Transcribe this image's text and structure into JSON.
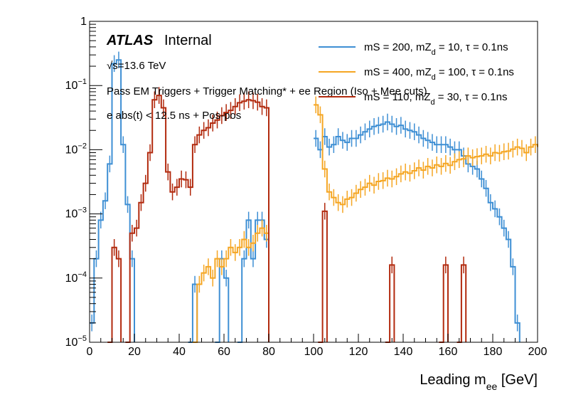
{
  "chart_data": {
    "type": "histogram",
    "xlabel": "Leading m",
    "xlabel_sub": "ee",
    "xlabel_unit": " [GeV]",
    "xlim": [
      0,
      200
    ],
    "ylim": [
      1e-05,
      1
    ],
    "yscale": "log",
    "grid": false,
    "legend_position": "top-right",
    "x_ticks": [
      0,
      20,
      40,
      60,
      80,
      100,
      120,
      140,
      160,
      180,
      200
    ],
    "y_ticks": [
      {
        "value": 1,
        "base": "1",
        "exp": ""
      },
      {
        "value": 0.1,
        "base": "10",
        "exp": "−1"
      },
      {
        "value": 0.01,
        "base": "10",
        "exp": "−2"
      },
      {
        "value": 0.001,
        "base": "10",
        "exp": "−3"
      },
      {
        "value": 0.0001,
        "base": "10",
        "exp": "−4"
      },
      {
        "value": 1e-05,
        "base": "10",
        "exp": "−5"
      }
    ],
    "annotations": {
      "atlas": "ATLAS",
      "internal": "Internal",
      "energy": "√s=13.6 TeV",
      "selection": "Pass EM Triggers + Trigger Matching* + ee Region (Iso + Mee cuts)",
      "timing": "e abs(t) < 12.5 ns + Pos-pos"
    },
    "series": [
      {
        "name_parts": [
          "mS = 200, mZ",
          "d",
          " = 10, τ = 0.1ns"
        ],
        "color": "#3e8fd4",
        "segments": [
          [
            [
              0,
              2e-05
            ],
            [
              2,
              0.0002
            ],
            [
              4,
              0.0008
            ],
            [
              6,
              0.0016
            ],
            [
              8,
              0.006
            ],
            [
              10,
              0.22
            ],
            [
              12,
              0.25
            ],
            [
              14,
              0.012
            ],
            [
              16,
              0.0014
            ],
            [
              18,
              0.0002
            ],
            [
              20,
              1e-05
            ]
          ],
          [
            [
              44,
              1e-05
            ],
            [
              46,
              8e-05
            ],
            [
              48,
              1e-05
            ]
          ],
          [
            [
              56,
              1e-05
            ],
            [
              58,
              0.0002
            ],
            [
              60,
              0.0001
            ],
            [
              62,
              1e-05
            ]
          ],
          [
            [
              66,
              1e-05
            ],
            [
              68,
              0.0002
            ],
            [
              70,
              0.0008
            ],
            [
              72,
              0.0002
            ],
            [
              74,
              0.0008
            ],
            [
              76,
              0.0008
            ],
            [
              78,
              0.0004
            ],
            [
              80,
              1e-05
            ]
          ],
          [
            [
              100,
              0.015
            ],
            [
              102,
              0.01
            ],
            [
              104,
              0.016
            ],
            [
              106,
              0.011
            ],
            [
              108,
              0.012
            ],
            [
              110,
              0.016
            ],
            [
              112,
              0.014
            ],
            [
              114,
              0.013
            ],
            [
              116,
              0.015
            ],
            [
              118,
              0.015
            ],
            [
              120,
              0.017
            ],
            [
              122,
              0.019
            ],
            [
              124,
              0.021
            ],
            [
              126,
              0.023
            ],
            [
              128,
              0.024
            ],
            [
              130,
              0.025
            ],
            [
              132,
              0.027
            ],
            [
              134,
              0.025
            ],
            [
              136,
              0.023
            ],
            [
              138,
              0.024
            ],
            [
              140,
              0.021
            ],
            [
              142,
              0.02
            ],
            [
              144,
              0.019
            ],
            [
              146,
              0.017
            ],
            [
              148,
              0.015
            ],
            [
              150,
              0.014
            ],
            [
              152,
              0.013
            ],
            [
              154,
              0.012
            ],
            [
              156,
              0.012
            ],
            [
              158,
              0.012
            ],
            [
              160,
              0.011
            ],
            [
              162,
              0.01
            ],
            [
              164,
              0.01
            ],
            [
              166,
              0.008
            ],
            [
              168,
              0.006
            ],
            [
              170,
              0.0055
            ],
            [
              172,
              0.005
            ],
            [
              174,
              0.0035
            ],
            [
              176,
              0.0025
            ],
            [
              178,
              0.0015
            ],
            [
              180,
              0.0012
            ],
            [
              182,
              0.0009
            ],
            [
              184,
              0.0006
            ],
            [
              186,
              0.0004
            ],
            [
              188,
              0.00015
            ],
            [
              190,
              2e-05
            ],
            [
              192,
              1e-05
            ]
          ]
        ]
      },
      {
        "name_parts": [
          "mS = 400, mZ",
          "d",
          " = 100, τ = 0.1ns"
        ],
        "color": "#f5a623",
        "segments": [
          [
            [
              46,
              1e-05
            ],
            [
              48,
              8e-05
            ],
            [
              50,
              0.00012
            ],
            [
              52,
              0.00015
            ],
            [
              54,
              0.0001
            ],
            [
              56,
              0.0002
            ],
            [
              58,
              0.00015
            ],
            [
              60,
              0.0002
            ],
            [
              62,
              0.0003
            ],
            [
              64,
              0.00025
            ],
            [
              66,
              0.0003
            ],
            [
              68,
              0.0004
            ],
            [
              70,
              0.0003
            ],
            [
              72,
              0.00035
            ],
            [
              74,
              0.0005
            ],
            [
              76,
              0.0006
            ],
            [
              78,
              0.0005
            ],
            [
              80,
              1e-05
            ]
          ],
          [
            [
              100,
              0.05
            ],
            [
              102,
              0.035
            ],
            [
              104,
              0.005
            ],
            [
              106,
              0.0022
            ],
            [
              108,
              0.0018
            ],
            [
              110,
              0.0015
            ],
            [
              112,
              0.0014
            ],
            [
              114,
              0.0017
            ],
            [
              116,
              0.0018
            ],
            [
              118,
              0.0021
            ],
            [
              120,
              0.0024
            ],
            [
              122,
              0.0026
            ],
            [
              124,
              0.003
            ],
            [
              126,
              0.0028
            ],
            [
              128,
              0.0032
            ],
            [
              130,
              0.0033
            ],
            [
              132,
              0.0036
            ],
            [
              134,
              0.0035
            ],
            [
              136,
              0.0038
            ],
            [
              138,
              0.0042
            ],
            [
              140,
              0.0045
            ],
            [
              142,
              0.0043
            ],
            [
              144,
              0.0047
            ],
            [
              146,
              0.0052
            ],
            [
              148,
              0.0048
            ],
            [
              150,
              0.0055
            ],
            [
              152,
              0.0052
            ],
            [
              154,
              0.0058
            ],
            [
              156,
              0.0055
            ],
            [
              158,
              0.0061
            ],
            [
              160,
              0.0057
            ],
            [
              162,
              0.0065
            ],
            [
              164,
              0.007
            ],
            [
              166,
              0.0072
            ],
            [
              168,
              0.008
            ],
            [
              170,
              0.0075
            ],
            [
              172,
              0.0078
            ],
            [
              174,
              0.008
            ],
            [
              176,
              0.0085
            ],
            [
              178,
              0.008
            ],
            [
              180,
              0.009
            ],
            [
              182,
              0.0088
            ],
            [
              184,
              0.0093
            ],
            [
              186,
              0.0095
            ],
            [
              188,
              0.0102
            ],
            [
              190,
              0.011
            ],
            [
              192,
              0.0105
            ],
            [
              194,
              0.009
            ],
            [
              196,
              0.011
            ],
            [
              198,
              0.012
            ],
            [
              200,
              0.011
            ]
          ]
        ]
      },
      {
        "name_parts": [
          "mS = 110, mZ",
          "d",
          " = 30, τ = 0.1ns"
        ],
        "color": "#b22a0e",
        "segments": [
          [
            [
              8,
              1e-05
            ],
            [
              10,
              0.0003
            ],
            [
              12,
              0.0002
            ],
            [
              14,
              1e-05
            ]
          ],
          [
            [
              16,
              1e-05
            ],
            [
              18,
              0.0005
            ],
            [
              20,
              0.0006
            ],
            [
              22,
              0.0015
            ],
            [
              24,
              0.003
            ],
            [
              26,
              0.009
            ],
            [
              28,
              0.06
            ],
            [
              30,
              0.07
            ],
            [
              32,
              0.045
            ],
            [
              34,
              0.0045
            ],
            [
              36,
              0.0022
            ],
            [
              38,
              0.0026
            ],
            [
              40,
              0.0035
            ],
            [
              42,
              0.0034
            ],
            [
              44,
              0.0026
            ],
            [
              46,
              0.012
            ],
            [
              48,
              0.017
            ],
            [
              50,
              0.02
            ],
            [
              52,
              0.022
            ],
            [
              54,
              0.026
            ],
            [
              56,
              0.029
            ],
            [
              58,
              0.034
            ],
            [
              60,
              0.038
            ],
            [
              62,
              0.041
            ],
            [
              64,
              0.047
            ],
            [
              66,
              0.054
            ],
            [
              68,
              0.057
            ],
            [
              70,
              0.06
            ],
            [
              72,
              0.058
            ],
            [
              74,
              0.055
            ],
            [
              76,
              0.047
            ],
            [
              78,
              0.045
            ],
            [
              80,
              1e-05
            ]
          ],
          [
            [
              102,
              1e-05
            ],
            [
              104,
              0.0011
            ],
            [
              106,
              1e-05
            ]
          ],
          [
            [
              132,
              1e-05
            ],
            [
              134,
              0.00016
            ],
            [
              136,
              1e-05
            ]
          ],
          [
            [
              156,
              1e-05
            ],
            [
              158,
              0.00016
            ],
            [
              160,
              1e-05
            ]
          ],
          [
            [
              164,
              1e-05
            ],
            [
              166,
              0.00016
            ],
            [
              168,
              1e-05
            ]
          ]
        ]
      }
    ]
  }
}
